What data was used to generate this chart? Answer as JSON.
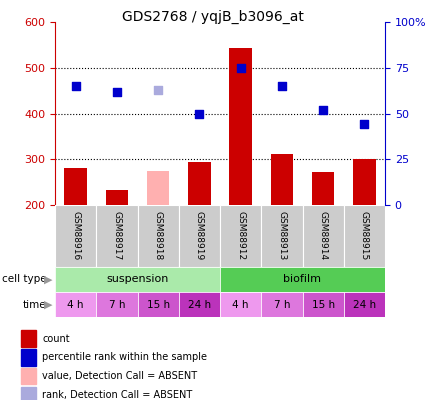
{
  "title": "GDS2768 / yqjB_b3096_at",
  "samples": [
    "GSM88916",
    "GSM88917",
    "GSM88918",
    "GSM88919",
    "GSM88912",
    "GSM88913",
    "GSM88914",
    "GSM88915"
  ],
  "counts": [
    280,
    232,
    275,
    293,
    543,
    312,
    272,
    300
  ],
  "count_colors": [
    "#cc0000",
    "#cc0000",
    "#ffb0b0",
    "#cc0000",
    "#cc0000",
    "#cc0000",
    "#cc0000",
    "#cc0000"
  ],
  "ranks_pct": [
    65,
    62,
    63,
    50,
    75,
    65,
    52,
    44
  ],
  "rank_colors": [
    "#0000cc",
    "#0000cc",
    "#aaaadd",
    "#0000cc",
    "#0000cc",
    "#0000cc",
    "#0000cc",
    "#0000cc"
  ],
  "ylim_left": [
    200,
    600
  ],
  "ylim_right": [
    0,
    100
  ],
  "yticks_left": [
    200,
    300,
    400,
    500,
    600
  ],
  "yticks_right": [
    0,
    25,
    50,
    75,
    100
  ],
  "ytick_labels_right": [
    "0",
    "25",
    "50",
    "75",
    "100%"
  ],
  "dotted_lines_pct": [
    25,
    50,
    75
  ],
  "cell_type_labels": [
    "suspension",
    "biofilm"
  ],
  "cell_type_colors": [
    "#aaeaaa",
    "#55cc55"
  ],
  "cell_type_ranges": [
    [
      0,
      4
    ],
    [
      4,
      8
    ]
  ],
  "time_labels": [
    "4 h",
    "7 h",
    "15 h",
    "24 h",
    "4 h",
    "7 h",
    "15 h",
    "24 h"
  ],
  "time_colors": [
    "#ee99ee",
    "#dd77dd",
    "#cc55cc",
    "#bb33bb",
    "#ee99ee",
    "#dd77dd",
    "#cc55cc",
    "#bb33bb"
  ],
  "bar_width": 0.55,
  "count_base": 200,
  "legend_items": [
    {
      "color": "#cc0000",
      "label": "count"
    },
    {
      "color": "#0000cc",
      "label": "percentile rank within the sample"
    },
    {
      "color": "#ffb0b0",
      "label": "value, Detection Call = ABSENT"
    },
    {
      "color": "#aaaadd",
      "label": "rank, Detection Call = ABSENT"
    }
  ],
  "left_axis_color": "#cc0000",
  "right_axis_color": "#0000cc",
  "bg_color": "#ffffff"
}
